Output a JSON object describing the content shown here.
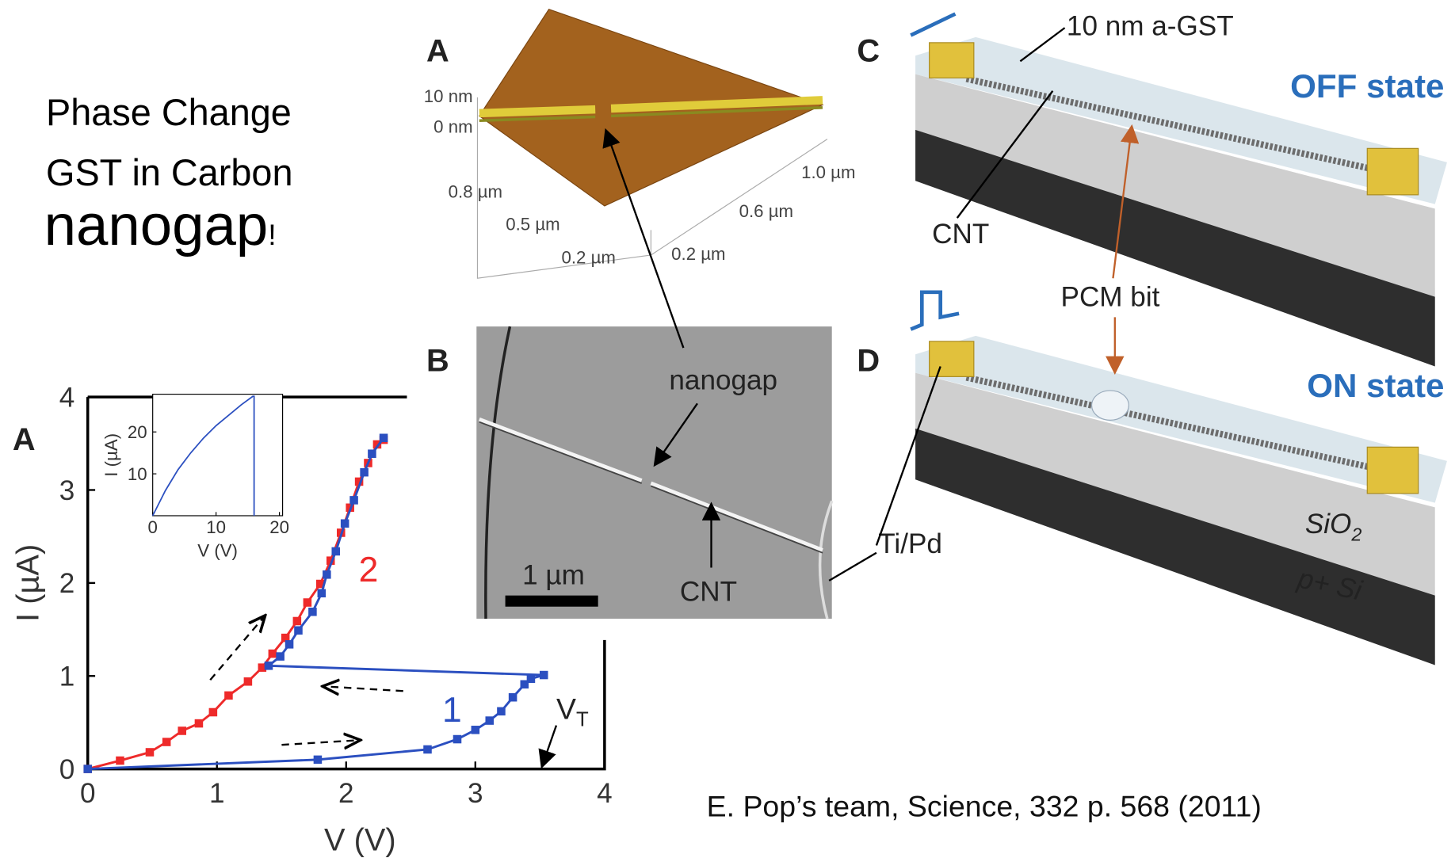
{
  "title": {
    "line1": "Phase Change",
    "line2": "GST in Carbon",
    "line3": "nanogap",
    "line3_end": "!"
  },
  "chart_data": [
    {
      "type": "line",
      "panel": "A",
      "x_label": "V (V)",
      "y_label": "I (µA)",
      "xlim": [
        0,
        4
      ],
      "ylim": [
        0,
        4
      ],
      "xticks": [
        0,
        1,
        2,
        3,
        4
      ],
      "yticks": [
        0,
        1,
        2,
        3,
        4
      ],
      "markers": true,
      "series": [
        {
          "name": "1",
          "color": "#2b4fc0",
          "x": [
            0,
            1.78,
            2.63,
            2.86,
            3.0,
            3.11,
            3.2,
            3.29,
            3.38,
            3.43,
            3.53,
            1.4,
            1.49,
            1.56,
            1.63,
            1.74,
            1.81,
            1.85,
            1.92,
            1.99,
            2.06,
            2.14,
            2.2,
            2.29
          ],
          "values": [
            0,
            0.1,
            0.21,
            0.32,
            0.42,
            0.52,
            0.62,
            0.77,
            0.91,
            0.97,
            1.01,
            1.11,
            1.21,
            1.34,
            1.49,
            1.69,
            1.89,
            2.09,
            2.34,
            2.64,
            2.89,
            3.19,
            3.39,
            3.56
          ]
        },
        {
          "name": "2",
          "color": "#ee2a2a",
          "x": [
            0,
            0.25,
            0.48,
            0.61,
            0.73,
            0.86,
            0.97,
            1.09,
            1.24,
            1.35,
            1.43,
            1.53,
            1.62,
            1.7,
            1.8,
            1.88,
            1.96,
            2.03,
            2.1,
            2.17,
            2.24,
            2.29
          ],
          "values": [
            0,
            0.09,
            0.18,
            0.29,
            0.41,
            0.49,
            0.61,
            0.79,
            0.94,
            1.09,
            1.24,
            1.41,
            1.59,
            1.79,
            1.99,
            2.24,
            2.54,
            2.81,
            3.09,
            3.29,
            3.49,
            3.54
          ]
        }
      ],
      "vt_label": "V",
      "vt_subscript": "T"
    },
    {
      "type": "line",
      "x_label": "V (V)",
      "y_label": "I (µA)",
      "xlim": [
        0,
        20.5
      ],
      "ylim": [
        0,
        29
      ],
      "xticks": [
        0,
        10,
        20
      ],
      "yticks": [
        10,
        20
      ],
      "markers": false,
      "series": [
        {
          "color": "#2b4fc0",
          "x": [
            0,
            1,
            2,
            4,
            6,
            8,
            10,
            12,
            14,
            15.8,
            16,
            16
          ],
          "values": [
            0,
            3,
            6,
            11,
            15,
            18.5,
            21.5,
            24,
            26.5,
            28.5,
            28.5,
            0
          ]
        }
      ]
    }
  ],
  "afm": {
    "panel": "A",
    "z_top": "10 nm",
    "z_bottom": "0 nm",
    "x_labels": [
      "0.8 µm",
      "0.5 µm",
      "0.2 µm"
    ],
    "y_labels": [
      "1.0 µm",
      "0.6 µm",
      "0.2 µm"
    ]
  },
  "sem": {
    "panel": "B",
    "nanogap": "nanogap",
    "cnt": "CNT",
    "scale": "1 µm"
  },
  "device": {
    "panel_c": "C",
    "panel_d": "D",
    "gst": "10 nm a-GST",
    "off": "OFF state",
    "cnt": "CNT",
    "pcm": "PCM bit",
    "on": "ON state",
    "tipd": "Ti/Pd",
    "sio": "SiO",
    "sio_sub": "2",
    "si": "p+ Si"
  },
  "citation": "E. Pop’s team, Science, 332 p. 568 (2011)"
}
